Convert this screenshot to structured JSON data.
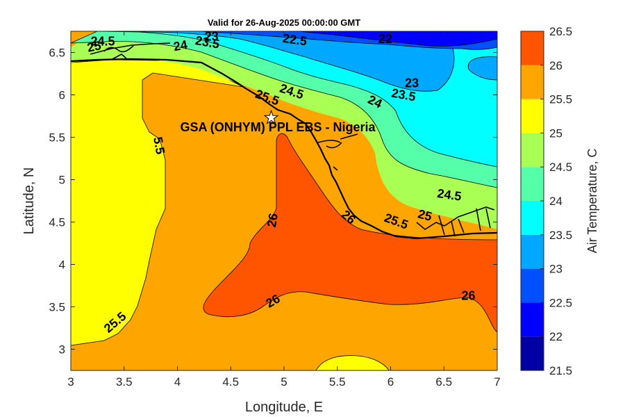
{
  "chart_data": {
    "type": "heatmap",
    "title": "Valid for 26-Aug-2025 00:00:00 GMT",
    "xlabel": "Longitude, E",
    "ylabel": "Latitude, N",
    "xlim": [
      3,
      7
    ],
    "ylim": [
      2.75,
      6.75
    ],
    "xticks": [
      3,
      3.5,
      4,
      4.5,
      5,
      5.5,
      6,
      6.5,
      7
    ],
    "xtick_labels": [
      "3",
      "3.5",
      "4",
      "4.5",
      "5",
      "5.5",
      "6",
      "6.5",
      "7"
    ],
    "yticks": [
      3,
      3.5,
      4,
      4.5,
      5,
      5.5,
      6,
      6.5
    ],
    "ytick_labels": [
      "3",
      "3.5",
      "4",
      "4.5",
      "5",
      "5.5",
      "6",
      "6.5"
    ],
    "colorbar": {
      "label": "Air Temperature, C",
      "lim": [
        21.5,
        26.5
      ],
      "ticks": [
        21.5,
        22,
        22.5,
        23,
        23.5,
        24,
        24.5,
        25,
        25.5,
        26,
        26.5
      ],
      "tick_labels": [
        "21.5",
        "22",
        "22.5",
        "23",
        "23.5",
        "24",
        "24.5",
        "25",
        "25.5",
        "26",
        "26.5"
      ],
      "colors": [
        "#0000a5",
        "#0000ff",
        "#0050ff",
        "#00a8ff",
        "#00ffff",
        "#55ffaa",
        "#aaff55",
        "#ffff00",
        "#ffa500",
        "#ff5500",
        "#ff0000"
      ]
    },
    "contour_labels": [
      {
        "text": "22",
        "lon": 5.95,
        "lat": 6.65,
        "angle": 0
      },
      {
        "text": "22.5",
        "lon": 5.1,
        "lat": 6.64,
        "angle": 8
      },
      {
        "text": "23",
        "lon": 4.32,
        "lat": 6.68,
        "angle": 0
      },
      {
        "text": "23.5",
        "lon": 4.28,
        "lat": 6.61,
        "angle": 10
      },
      {
        "text": "24",
        "lon": 4.03,
        "lat": 6.57,
        "angle": -10
      },
      {
        "text": "24.5",
        "lon": 3.3,
        "lat": 6.62,
        "angle": 0
      },
      {
        "text": "25",
        "lon": 3.22,
        "lat": 6.56,
        "angle": -12
      },
      {
        "text": "24.5",
        "lon": 5.07,
        "lat": 6.03,
        "angle": 18
      },
      {
        "text": "25.5",
        "lon": 4.84,
        "lat": 5.96,
        "angle": 20
      },
      {
        "text": "23",
        "lon": 6.2,
        "lat": 6.13,
        "angle": 0
      },
      {
        "text": "23.5",
        "lon": 6.12,
        "lat": 5.99,
        "angle": 10
      },
      {
        "text": "24",
        "lon": 5.85,
        "lat": 5.91,
        "angle": 25
      },
      {
        "text": "24.5",
        "lon": 6.55,
        "lat": 4.81,
        "angle": 8
      },
      {
        "text": "25",
        "lon": 6.32,
        "lat": 4.57,
        "angle": 15
      },
      {
        "text": "25.5",
        "lon": 6.05,
        "lat": 4.5,
        "angle": 20
      },
      {
        "text": "26",
        "lon": 5.6,
        "lat": 4.55,
        "angle": 40
      },
      {
        "text": "26",
        "lon": 4.9,
        "lat": 4.52,
        "angle": -80
      },
      {
        "text": "26",
        "lon": 4.9,
        "lat": 3.56,
        "angle": -30
      },
      {
        "text": "26",
        "lon": 6.73,
        "lat": 3.62,
        "angle": 0
      },
      {
        "text": "25.5",
        "lon": 3.42,
        "lat": 3.31,
        "angle": -40
      },
      {
        "text": "5.5",
        "lon": 3.82,
        "lat": 5.4,
        "angle": 80
      }
    ],
    "site": {
      "label": "GSA (ONHYM) PPL EBS - Nigeria",
      "lon": 4.88,
      "lat": 5.73,
      "marker": "star"
    }
  }
}
